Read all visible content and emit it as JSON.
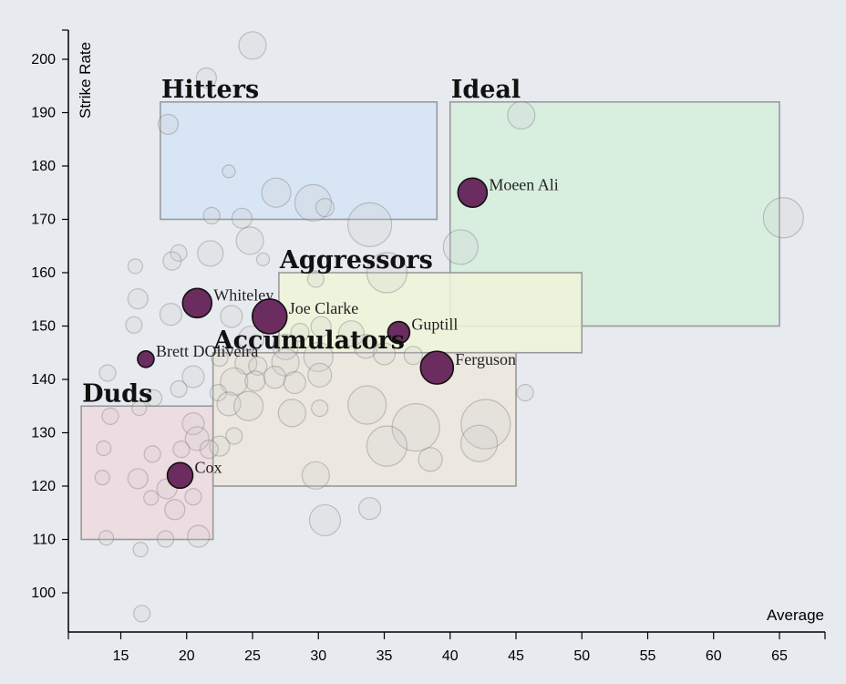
{
  "chart_data": {
    "type": "scatter",
    "xlabel": "Average",
    "ylabel": "Strike Rate",
    "xlim": [
      11,
      68
    ],
    "ylim": [
      93,
      206
    ],
    "x_ticks": [
      15,
      20,
      25,
      30,
      35,
      40,
      45,
      50,
      55,
      60,
      65
    ],
    "y_ticks": [
      100,
      110,
      120,
      130,
      140,
      150,
      160,
      170,
      180,
      190,
      200
    ],
    "zones": [
      {
        "label": "Hitters",
        "x": [
          18,
          39
        ],
        "y": [
          170,
          192
        ],
        "fill": "#d4e4f5"
      },
      {
        "label": "Ideal",
        "x": [
          40,
          65
        ],
        "y": [
          150,
          192
        ],
        "fill": "#d5f0dd"
      },
      {
        "label": "Aggressors",
        "x": [
          27,
          50
        ],
        "y": [
          145,
          160
        ],
        "fill": "#eef4d8"
      },
      {
        "label": "Accumulators",
        "x": [
          22,
          45
        ],
        "y": [
          120,
          145
        ],
        "fill": "#ece6dc"
      },
      {
        "label": "Duds",
        "x": [
          12,
          22
        ],
        "y": [
          110,
          135
        ],
        "fill": "#edd9df"
      }
    ],
    "highlighted": [
      {
        "name": "Moeen Ali",
        "x": 41.7,
        "y": 175,
        "r": 16
      },
      {
        "name": "Whiteley",
        "x": 20.8,
        "y": 154.3,
        "r": 16
      },
      {
        "name": "Joe Clarke",
        "x": 26.3,
        "y": 151.8,
        "r": 19
      },
      {
        "name": "Guptill",
        "x": 36.1,
        "y": 148.8,
        "r": 12
      },
      {
        "name": "Brett DOliveira",
        "x": 16.9,
        "y": 143.8,
        "r": 9
      },
      {
        "name": "Ferguson",
        "x": 39,
        "y": 142.2,
        "r": 18
      },
      {
        "name": "Cox",
        "x": 19.5,
        "y": 122,
        "r": 14
      }
    ],
    "others": [
      [
        25,
        202.6,
        15
      ],
      [
        21.5,
        196.5,
        11
      ],
      [
        45.4,
        189.5,
        15
      ],
      [
        18.6,
        187.8,
        11
      ],
      [
        23.2,
        179,
        7
      ],
      [
        26.8,
        175,
        16
      ],
      [
        29.6,
        173.1,
        20
      ],
      [
        30.5,
        172.2,
        10
      ],
      [
        33.9,
        169,
        24
      ],
      [
        21.9,
        170.7,
        9
      ],
      [
        24.2,
        170.2,
        11
      ],
      [
        65.3,
        170.3,
        22
      ],
      [
        24.8,
        166,
        15
      ],
      [
        40.8,
        164.8,
        19
      ],
      [
        19.4,
        163.7,
        9
      ],
      [
        21.8,
        163.6,
        14
      ],
      [
        18.9,
        162.2,
        10
      ],
      [
        25.8,
        162.5,
        7
      ],
      [
        16.1,
        161.2,
        8
      ],
      [
        35.2,
        160,
        22
      ],
      [
        29.8,
        158.8,
        9
      ],
      [
        16.3,
        155.1,
        11
      ],
      [
        18.8,
        152.2,
        12
      ],
      [
        23.4,
        151.8,
        12
      ],
      [
        16,
        150.2,
        9
      ],
      [
        30.2,
        149.9,
        11
      ],
      [
        32.5,
        148.6,
        14
      ],
      [
        28.6,
        148.8,
        10
      ],
      [
        24.9,
        147.6,
        14
      ],
      [
        27.5,
        146.1,
        14
      ],
      [
        33.6,
        146.2,
        13
      ],
      [
        35,
        144.8,
        12
      ],
      [
        30,
        144.2,
        16
      ],
      [
        37.2,
        144.5,
        10
      ],
      [
        22.5,
        144,
        9
      ],
      [
        24.5,
        143,
        12
      ],
      [
        25.4,
        142.5,
        10
      ],
      [
        27.5,
        143.2,
        15
      ],
      [
        14,
        141.2,
        9
      ],
      [
        20.5,
        140.5,
        12
      ],
      [
        23.6,
        139.6,
        15
      ],
      [
        25.2,
        139.7,
        11
      ],
      [
        26.7,
        140.4,
        12
      ],
      [
        28.2,
        139.4,
        12
      ],
      [
        30.1,
        140.8,
        13
      ],
      [
        19.4,
        138.2,
        9
      ],
      [
        22.4,
        137.5,
        9
      ],
      [
        23.2,
        135.4,
        13
      ],
      [
        24.7,
        135,
        16
      ],
      [
        28,
        133.7,
        15
      ],
      [
        30.1,
        134.6,
        9
      ],
      [
        17.5,
        136.5,
        9
      ],
      [
        16.4,
        134.6,
        8
      ],
      [
        14.2,
        133.1,
        9
      ],
      [
        20.5,
        131.7,
        12
      ],
      [
        20.8,
        128.9,
        13
      ],
      [
        23.6,
        129.4,
        9
      ],
      [
        22.5,
        127.5,
        11
      ],
      [
        19.6,
        126.9,
        9
      ],
      [
        21.7,
        126.9,
        10
      ],
      [
        33.7,
        135.2,
        21
      ],
      [
        37.4,
        131,
        26
      ],
      [
        42.7,
        131.6,
        27
      ],
      [
        35.2,
        127.5,
        22
      ],
      [
        42.2,
        128,
        20
      ],
      [
        45.7,
        137.5,
        9
      ],
      [
        38.5,
        125,
        13
      ],
      [
        13.7,
        127.1,
        8
      ],
      [
        17.4,
        126,
        9
      ],
      [
        16.3,
        121.4,
        11
      ],
      [
        13.6,
        121.6,
        8
      ],
      [
        18.5,
        119.5,
        11
      ],
      [
        20.5,
        118,
        9
      ],
      [
        17.3,
        117.8,
        8
      ],
      [
        19.1,
        115.6,
        11
      ],
      [
        18.4,
        110.1,
        9
      ],
      [
        13.9,
        110.3,
        8
      ],
      [
        20.9,
        110.6,
        12
      ],
      [
        16.5,
        108.1,
        8
      ],
      [
        29.8,
        122,
        15
      ],
      [
        30.5,
        113.6,
        17
      ],
      [
        33.9,
        115.8,
        12
      ],
      [
        16.6,
        96.1,
        9
      ]
    ]
  }
}
